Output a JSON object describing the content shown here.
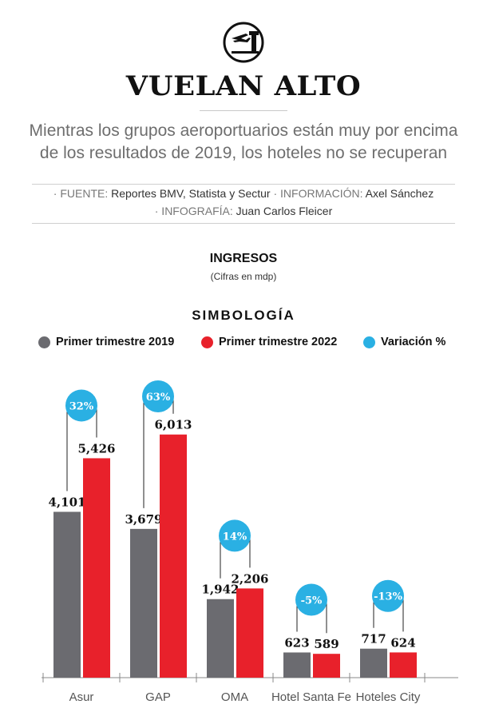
{
  "header": {
    "title": "VUELAN ALTO",
    "subtitle_line1": "Mientras los grupos aeroportuarios están muy por encima",
    "subtitle_line2": "de los resultados de 2019, los hoteles no se recuperan",
    "logo_icon": "airport-tower-plane-icon"
  },
  "credits": {
    "fuente_label": "· FUENTE:",
    "fuente_value": "Reportes BMV, Statista y Sectur",
    "informacion_label": "· INFORMACIÓN:",
    "informacion_value": "Axel Sánchez",
    "infografia_label": "· INFOGRAFÍA:",
    "infografia_value": "Juan Carlos Fleicer"
  },
  "chart_heading": {
    "title": "INGRESOS",
    "units": "(Cifras en mdp)",
    "legend_title": "SIMBOLOGÍA"
  },
  "colors": {
    "gray": "#6b6b70",
    "red": "#e8212b",
    "blue": "#2ab0e3"
  },
  "chart_data": {
    "type": "bar",
    "title": "INGRESOS",
    "ylabel": "",
    "ylim": [
      0,
      6500
    ],
    "grid": false,
    "legend": "top",
    "categories": [
      "Asur",
      "GAP",
      "OMA",
      "Hotel Santa Fe",
      "Hoteles City"
    ],
    "series": [
      {
        "name": "Primer trimestre 2019",
        "color": "#6b6b70",
        "values": [
          4101,
          3679,
          1942,
          623,
          717
        ],
        "labels": [
          "4,101",
          "3,679",
          "1,942",
          "623",
          "717"
        ]
      },
      {
        "name": "Primer trimestre 2022",
        "color": "#e8212b",
        "values": [
          5426,
          6013,
          2206,
          589,
          624
        ],
        "labels": [
          "5,426",
          "6,013",
          "2,206",
          "589",
          "624"
        ]
      }
    ],
    "variation": {
      "name": "Variación %",
      "color": "#2ab0e3",
      "values": [
        32,
        63,
        14,
        -5,
        -13
      ],
      "labels": [
        "32%",
        "63%",
        "14%",
        "-5%",
        "-13%"
      ]
    }
  }
}
